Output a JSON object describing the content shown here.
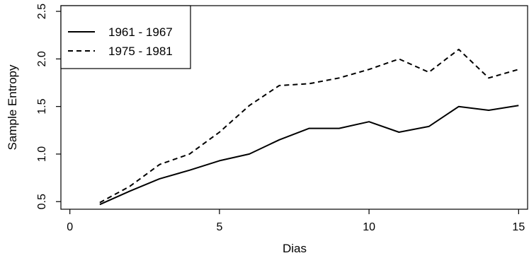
{
  "chart_data": {
    "type": "line",
    "title": "",
    "xlabel": "Dias",
    "ylabel": "Sample Entropy",
    "xlim": [
      -0.3,
      15.3
    ],
    "ylim": [
      0.42,
      2.56
    ],
    "xticks": [
      0,
      5,
      10,
      15
    ],
    "yticks": [
      0.5,
      1.0,
      1.5,
      2.0,
      2.5
    ],
    "ytick_labels": [
      "0.5",
      "1.0",
      "1.5",
      "2.0",
      "2.5"
    ],
    "grid": false,
    "legend_position": "top-left",
    "x": [
      1,
      2,
      3,
      4,
      5,
      6,
      7,
      8,
      9,
      10,
      11,
      12,
      13,
      14,
      15
    ],
    "series": [
      {
        "name": "1961 - 1967",
        "style": "solid",
        "color": "#000000",
        "values": [
          0.47,
          0.61,
          0.74,
          0.83,
          0.93,
          1.0,
          1.15,
          1.27,
          1.27,
          1.34,
          1.23,
          1.29,
          1.5,
          1.46,
          1.51
        ]
      },
      {
        "name": "1975 - 1981",
        "style": "dashed",
        "color": "#000000",
        "values": [
          0.49,
          0.66,
          0.89,
          1.0,
          1.23,
          1.51,
          1.72,
          1.74,
          1.8,
          1.89,
          2.0,
          1.86,
          2.1,
          1.8,
          1.89
        ]
      }
    ]
  }
}
